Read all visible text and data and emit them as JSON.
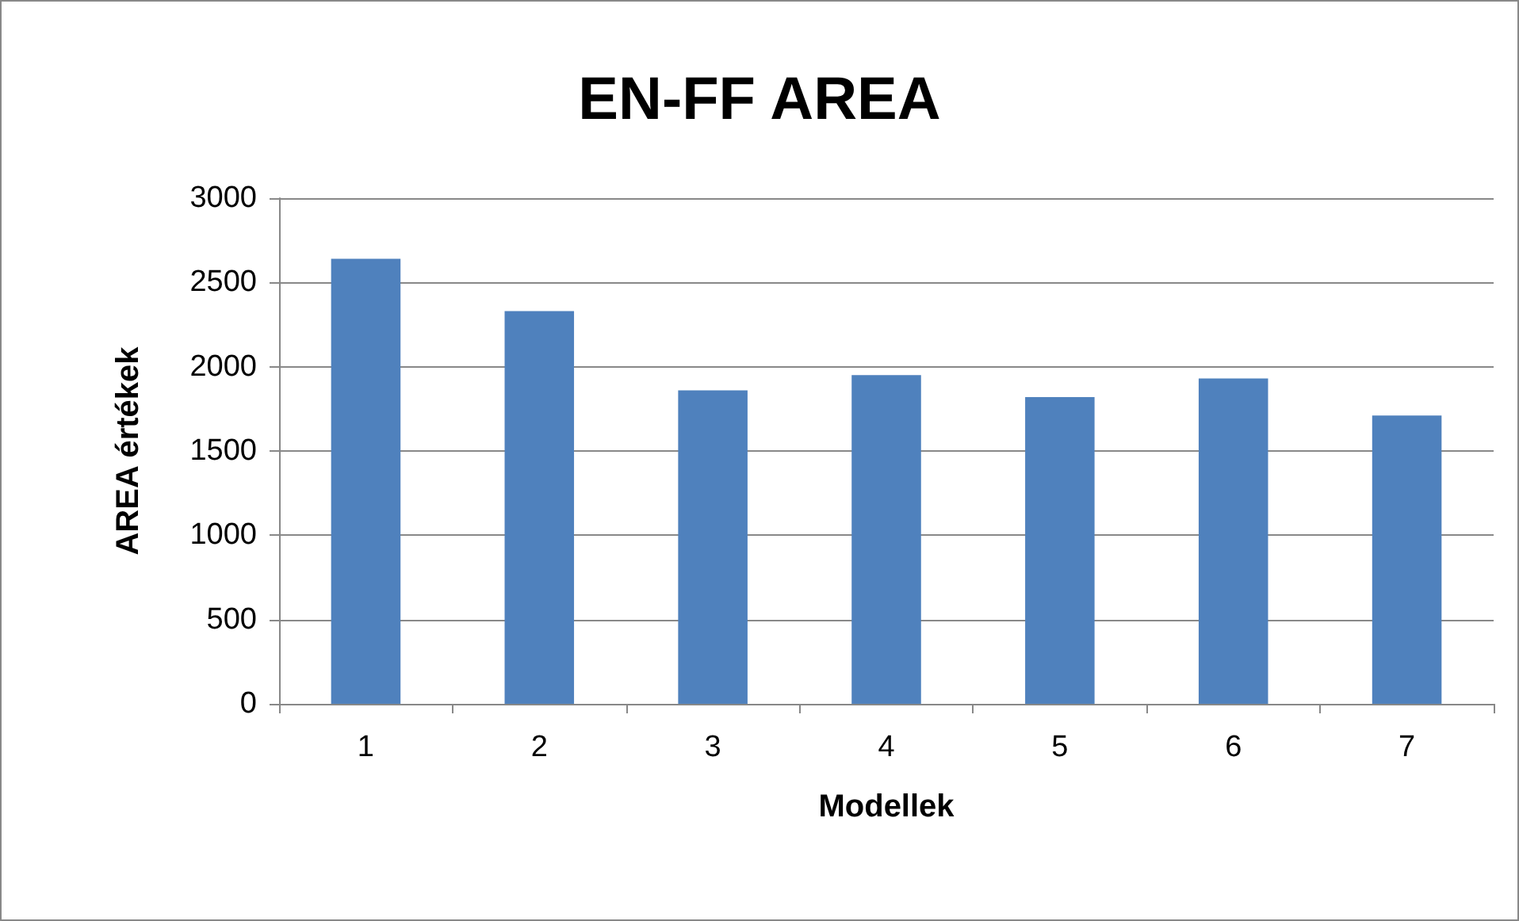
{
  "chart_data": {
    "type": "bar",
    "title": "EN-FF AREA",
    "xlabel": "Modellek",
    "ylabel": "AREA értékek",
    "categories": [
      "1",
      "2",
      "3",
      "4",
      "5",
      "6",
      "7"
    ],
    "values": [
      2640,
      2330,
      1860,
      1950,
      1820,
      1930,
      1710
    ],
    "color": "#4f81bd",
    "ylim": [
      0,
      3000
    ],
    "yticks": [
      0,
      500,
      1000,
      1500,
      2000,
      2500,
      3000
    ],
    "grid": "y"
  }
}
